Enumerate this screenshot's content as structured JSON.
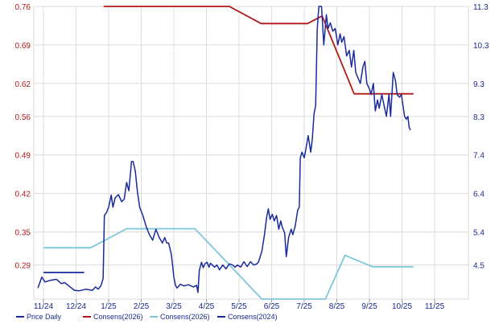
{
  "chart_data": {
    "type": "line",
    "x_categories": [
      "11/24",
      "12/24",
      "1/25",
      "2/25",
      "3/25",
      "4/25",
      "5/25",
      "6/25",
      "7/25",
      "8/25",
      "9/25",
      "10/25",
      "11/25"
    ],
    "y_left_ticks": [
      "0.76",
      "0.69",
      "0.62",
      "0.56",
      "0.49",
      "0.42",
      "0.35",
      "0.29"
    ],
    "y_right_ticks": [
      "11.3",
      "10.3",
      "9.3",
      "8.3",
      "7.4",
      "6.4",
      "5.4",
      "4.5"
    ],
    "ylim_left": [
      0.228,
      0.76
    ],
    "ylim_right": [
      3.6,
      11.3
    ],
    "grid": true,
    "legend_position": "bottom-left",
    "series": [
      {
        "name": "Price Daily",
        "color": "#1a2a9c",
        "axis": "left",
        "points": [
          [
            -0.17,
            0.248
          ],
          [
            -0.05,
            0.268
          ],
          [
            0.05,
            0.259
          ],
          [
            0.2,
            0.262
          ],
          [
            0.4,
            0.264
          ],
          [
            0.55,
            0.256
          ],
          [
            0.65,
            0.258
          ],
          [
            0.8,
            0.251
          ],
          [
            0.95,
            0.244
          ],
          [
            1.1,
            0.243
          ],
          [
            1.3,
            0.246
          ],
          [
            1.5,
            0.244
          ],
          [
            1.6,
            0.25
          ],
          [
            1.68,
            0.246
          ],
          [
            1.76,
            0.252
          ],
          [
            1.83,
            0.265
          ],
          [
            1.87,
            0.38
          ],
          [
            1.93,
            0.385
          ],
          [
            2.0,
            0.395
          ],
          [
            2.08,
            0.417
          ],
          [
            2.13,
            0.395
          ],
          [
            2.2,
            0.412
          ],
          [
            2.3,
            0.418
          ],
          [
            2.4,
            0.405
          ],
          [
            2.48,
            0.41
          ],
          [
            2.55,
            0.44
          ],
          [
            2.62,
            0.425
          ],
          [
            2.7,
            0.478
          ],
          [
            2.75,
            0.478
          ],
          [
            2.82,
            0.46
          ],
          [
            2.88,
            0.425
          ],
          [
            2.95,
            0.395
          ],
          [
            3.05,
            0.38
          ],
          [
            3.15,
            0.36
          ],
          [
            3.25,
            0.345
          ],
          [
            3.35,
            0.335
          ],
          [
            3.45,
            0.355
          ],
          [
            3.55,
            0.34
          ],
          [
            3.65,
            0.33
          ],
          [
            3.72,
            0.34
          ],
          [
            3.78,
            0.33
          ],
          [
            3.84,
            0.33
          ],
          [
            3.92,
            0.31
          ],
          [
            3.96,
            0.29
          ],
          [
            4.0,
            0.268
          ],
          [
            4.05,
            0.253
          ],
          [
            4.1,
            0.248
          ],
          [
            4.2,
            0.255
          ],
          [
            4.3,
            0.252
          ],
          [
            4.45,
            0.254
          ],
          [
            4.6,
            0.25
          ],
          [
            4.7,
            0.253
          ],
          [
            4.74,
            0.24
          ],
          [
            4.78,
            0.28
          ],
          [
            4.85,
            0.295
          ],
          [
            4.9,
            0.285
          ],
          [
            4.95,
            0.292
          ],
          [
            5.02,
            0.295
          ],
          [
            5.08,
            0.286
          ],
          [
            5.12,
            0.293
          ],
          [
            5.18,
            0.29
          ],
          [
            5.25,
            0.286
          ],
          [
            5.32,
            0.29
          ],
          [
            5.4,
            0.281
          ],
          [
            5.5,
            0.29
          ],
          [
            5.6,
            0.283
          ],
          [
            5.7,
            0.292
          ],
          [
            5.8,
            0.29
          ],
          [
            5.88,
            0.286
          ],
          [
            5.95,
            0.29
          ],
          [
            6.05,
            0.286
          ],
          [
            6.15,
            0.296
          ],
          [
            6.25,
            0.287
          ],
          [
            6.35,
            0.296
          ],
          [
            6.45,
            0.29
          ],
          [
            6.55,
            0.292
          ],
          [
            6.6,
            0.296
          ],
          [
            6.7,
            0.315
          ],
          [
            6.78,
            0.345
          ],
          [
            6.85,
            0.378
          ],
          [
            6.9,
            0.392
          ],
          [
            6.95,
            0.373
          ],
          [
            7.02,
            0.382
          ],
          [
            7.08,
            0.37
          ],
          [
            7.15,
            0.38
          ],
          [
            7.22,
            0.355
          ],
          [
            7.28,
            0.37
          ],
          [
            7.33,
            0.358
          ],
          [
            7.4,
            0.348
          ],
          [
            7.45,
            0.305
          ],
          [
            7.52,
            0.34
          ],
          [
            7.6,
            0.355
          ],
          [
            7.65,
            0.345
          ],
          [
            7.72,
            0.36
          ],
          [
            7.8,
            0.39
          ],
          [
            7.85,
            0.395
          ],
          [
            7.88,
            0.485
          ],
          [
            7.93,
            0.495
          ],
          [
            8.0,
            0.485
          ],
          [
            8.05,
            0.5
          ],
          [
            8.12,
            0.525
          ],
          [
            8.2,
            0.495
          ],
          [
            8.25,
            0.52
          ],
          [
            8.3,
            0.565
          ],
          [
            8.35,
            0.58
          ],
          [
            8.4,
            0.72
          ],
          [
            8.45,
            0.76
          ],
          [
            8.53,
            0.76
          ],
          [
            8.6,
            0.69
          ],
          [
            8.68,
            0.745
          ],
          [
            8.73,
            0.72
          ],
          [
            8.8,
            0.73
          ],
          [
            8.88,
            0.715
          ],
          [
            8.95,
            0.72
          ],
          [
            9.03,
            0.69
          ],
          [
            9.1,
            0.71
          ],
          [
            9.15,
            0.695
          ],
          [
            9.22,
            0.705
          ],
          [
            9.3,
            0.67
          ],
          [
            9.38,
            0.68
          ],
          [
            9.45,
            0.65
          ],
          [
            9.52,
            0.68
          ],
          [
            9.58,
            0.64
          ],
          [
            9.65,
            0.63
          ],
          [
            9.72,
            0.62
          ],
          [
            9.8,
            0.65
          ],
          [
            9.86,
            0.66
          ],
          [
            9.92,
            0.62
          ],
          [
            10.0,
            0.61
          ],
          [
            10.05,
            0.6
          ],
          [
            10.12,
            0.62
          ],
          [
            10.18,
            0.57
          ],
          [
            10.25,
            0.59
          ],
          [
            10.3,
            0.575
          ],
          [
            10.38,
            0.6
          ],
          [
            10.45,
            0.58
          ],
          [
            10.52,
            0.56
          ],
          [
            10.6,
            0.6
          ],
          [
            10.65,
            0.56
          ],
          [
            10.73,
            0.64
          ],
          [
            10.8,
            0.625
          ],
          [
            10.85,
            0.6
          ],
          [
            10.92,
            0.595
          ],
          [
            10.98,
            0.6
          ],
          [
            11.03,
            0.58
          ],
          [
            11.08,
            0.56
          ],
          [
            11.13,
            0.555
          ],
          [
            11.18,
            0.56
          ],
          [
            11.22,
            0.54
          ],
          [
            11.26,
            0.535
          ]
        ]
      },
      {
        "name": "Consens(2026)",
        "color": "#b01818",
        "axis": "right",
        "points": [
          [
            1.85,
            11.3
          ],
          [
            5.7,
            11.3
          ],
          [
            6.68,
            10.85
          ],
          [
            8.1,
            10.85
          ],
          [
            8.55,
            11.05
          ],
          [
            9.53,
            9.0
          ],
          [
            11.35,
            9.0
          ]
        ]
      },
      {
        "name": "Consens(2026)",
        "color": "#7ec6dc",
        "axis": "right",
        "points": [
          [
            0.0,
            4.95
          ],
          [
            1.45,
            4.95
          ],
          [
            2.55,
            5.45
          ],
          [
            4.65,
            5.45
          ],
          [
            6.7,
            3.6
          ],
          [
            8.65,
            3.6
          ],
          [
            9.25,
            4.75
          ],
          [
            10.1,
            4.45
          ],
          [
            11.35,
            4.45
          ]
        ]
      },
      {
        "name": "Consens(2024)",
        "color": "#1a2a9c",
        "axis": "right",
        "points": [
          [
            0.0,
            4.3
          ],
          [
            1.25,
            4.3
          ]
        ]
      }
    ]
  }
}
